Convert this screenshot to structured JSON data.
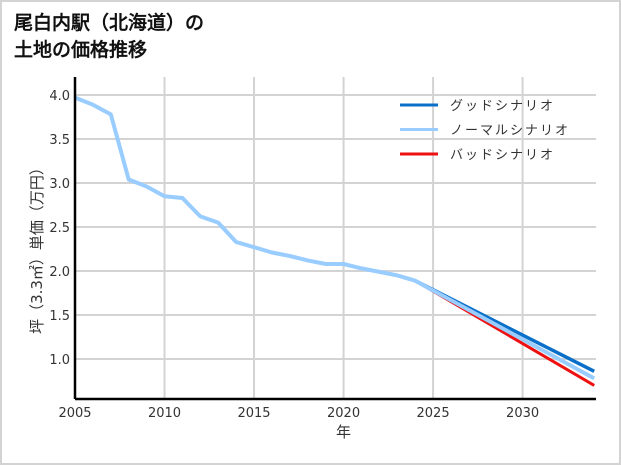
{
  "title_line1": "尾白内駅（北海道）の",
  "title_line2": "土地の価格推移",
  "chart_data": {
    "type": "line",
    "title": "尾白内駅（北海道）の土地の価格推移",
    "xlabel": "年",
    "ylabel": "坪（3.3㎡）単価（万円）",
    "xlim": [
      2005,
      2034
    ],
    "ylim": [
      0.6,
      4.05
    ],
    "xticks": [
      2005,
      2010,
      2015,
      2020,
      2025,
      2030
    ],
    "yticks": [
      1.0,
      1.5,
      2.0,
      2.5,
      3.0,
      3.5,
      4.0
    ],
    "grid": true,
    "legend_position": "upper right",
    "series": [
      {
        "name": "グッドシナリオ",
        "color": "#0a6fc8",
        "x": [
          2024,
          2034
        ],
        "values": [
          1.89,
          0.86
        ]
      },
      {
        "name": "ノーマルシナリオ",
        "color": "#99ccff",
        "x": [
          2005,
          2006,
          2007,
          2008,
          2009,
          2010,
          2011,
          2012,
          2013,
          2014,
          2015,
          2016,
          2017,
          2018,
          2019,
          2020,
          2021,
          2022,
          2023,
          2024,
          2034
        ],
        "values": [
          3.97,
          3.89,
          3.78,
          3.04,
          2.96,
          2.85,
          2.83,
          2.62,
          2.55,
          2.33,
          2.27,
          2.21,
          2.17,
          2.12,
          2.08,
          2.08,
          2.03,
          1.99,
          1.95,
          1.89,
          0.78
        ]
      },
      {
        "name": "バッドシナリオ",
        "color": "#ee1111",
        "x": [
          2024,
          2034
        ],
        "values": [
          1.89,
          0.7
        ]
      }
    ]
  }
}
